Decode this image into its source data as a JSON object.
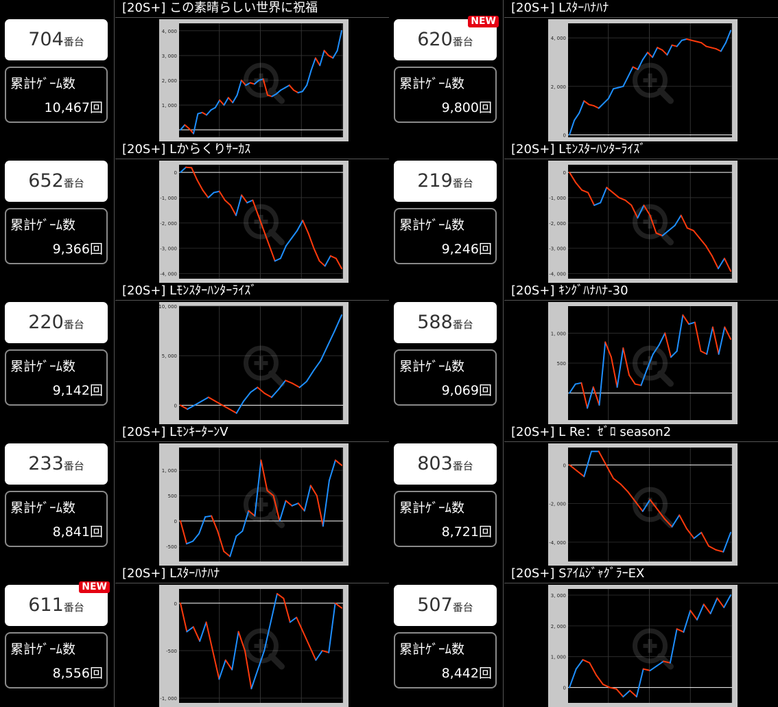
{
  "rows": [
    {
      "machine_number": "704",
      "machine_unit": "番台",
      "is_new": false,
      "title": "[20S+] この素晴らしい世界に祝福",
      "games_label": "累計ｹﾞｰﾑ数",
      "games_value": "10,467回",
      "chart_data": {
        "type": "line",
        "ylim": [
          -300,
          4300
        ],
        "yticks": [
          {
            "v": 0,
            "label": ""
          },
          {
            "v": 1000,
            "label": "1, 000"
          },
          {
            "v": 2000,
            "label": "2, 000"
          },
          {
            "v": 3000,
            "label": "3, 000"
          },
          {
            "v": 4000,
            "label": "4, 000"
          }
        ],
        "y": [
          0,
          200,
          50,
          -150,
          650,
          700,
          600,
          800,
          900,
          1200,
          1000,
          1300,
          1100,
          1400,
          2000,
          1800,
          1900,
          1850,
          2000,
          2050,
          1400,
          1350,
          1450,
          1600,
          1700,
          1800,
          1600,
          1500,
          1550,
          1800,
          2400,
          2900,
          2600,
          3200,
          3000,
          2900,
          3200,
          4000
        ]
      }
    },
    {
      "machine_number": "620",
      "machine_unit": "番台",
      "is_new": true,
      "new_label": "NEW",
      "title": "[20S+] Lｽﾀｰﾊﾅﾊﾅ",
      "games_label": "累計ｹﾞｰﾑ数",
      "games_value": "9,800回",
      "chart_data": {
        "type": "line",
        "ylim": [
          -100,
          4600
        ],
        "yticks": [
          {
            "v": 0,
            "label": "0"
          },
          {
            "v": 2000,
            "label": "2, 000"
          },
          {
            "v": 4000,
            "label": "4, 000"
          }
        ],
        "y": [
          0,
          600,
          900,
          1400,
          1250,
          1200,
          1100,
          1300,
          1500,
          1900,
          1950,
          2000,
          2400,
          2800,
          2700,
          3100,
          3400,
          3200,
          3600,
          3500,
          3300,
          3700,
          3650,
          3900,
          3950,
          3900,
          3850,
          3800,
          3650,
          3600,
          3550,
          3450,
          3800,
          4300
        ]
      }
    },
    {
      "machine_number": "652",
      "machine_unit": "番台",
      "is_new": false,
      "title": "[20S+] Lからくりｻｰｶｽ",
      "games_label": "累計ｹﾞｰﾑ数",
      "games_value": "9,366回",
      "chart_data": {
        "type": "line",
        "ylim": [
          -4200,
          300
        ],
        "yticks": [
          {
            "v": 0,
            "label": "0"
          },
          {
            "v": -1000,
            "label": "-1, 000"
          },
          {
            "v": -2000,
            "label": "-2, 000"
          },
          {
            "v": -3000,
            "label": "-3, 000"
          },
          {
            "v": -4000,
            "label": "-4, 000"
          }
        ],
        "y": [
          0,
          200,
          180,
          -300,
          -700,
          -1000,
          -800,
          -750,
          -1100,
          -1300,
          -1700,
          -900,
          -1200,
          -1100,
          -1700,
          -2300,
          -2900,
          -3500,
          -3400,
          -2900,
          -2600,
          -2300,
          -1900,
          -2400,
          -3000,
          -3500,
          -3700,
          -3300,
          -3400,
          -3800
        ]
      }
    },
    {
      "machine_number": "219",
      "machine_unit": "番台",
      "is_new": false,
      "title": "[20S+] Lﾓﾝｽﾀｰﾊﾝﾀｰﾗｲｽﾞ",
      "games_label": "累計ｹﾞｰﾑ数",
      "games_value": "9,246回",
      "chart_data": {
        "type": "line",
        "ylim": [
          -4200,
          300
        ],
        "yticks": [
          {
            "v": 0,
            "label": "0"
          },
          {
            "v": -1000,
            "label": "-1, 000"
          },
          {
            "v": -2000,
            "label": "-2, 000"
          },
          {
            "v": -3000,
            "label": "-3, 000"
          },
          {
            "v": -4000,
            "label": "-4, 000"
          }
        ],
        "y": [
          0,
          -400,
          -700,
          -800,
          -1300,
          -1200,
          -600,
          -800,
          -1000,
          -1100,
          -1300,
          -1800,
          -1300,
          -1700,
          -2400,
          -2500,
          -2300,
          -2100,
          -1700,
          -2200,
          -2300,
          -2600,
          -2900,
          -3300,
          -3800,
          -3400,
          -3900
        ]
      }
    },
    {
      "machine_number": "220",
      "machine_unit": "番台",
      "is_new": false,
      "title": "[20S+] Lﾓﾝｽﾀｰﾊﾝﾀｰﾗｲｽﾞ",
      "games_label": "累計ｹﾞｰﾑ数",
      "games_value": "9,142回",
      "chart_data": {
        "type": "line",
        "ylim": [
          -1500,
          10000
        ],
        "yticks": [
          {
            "v": 0,
            "label": "0"
          },
          {
            "v": 5000,
            "label": "5, 000"
          },
          {
            "v": 10000,
            "label": "10, 000"
          }
        ],
        "y": [
          0,
          -400,
          0,
          400,
          800,
          400,
          0,
          -400,
          -800,
          400,
          1300,
          1800,
          1200,
          800,
          1600,
          2500,
          2200,
          1800,
          2400,
          3500,
          4500,
          6000,
          7500,
          9100
        ]
      }
    },
    {
      "machine_number": "588",
      "machine_unit": "番台",
      "is_new": false,
      "title": "[20S+] ｷﾝｸﾞﾊﾅﾊﾅ-30",
      "games_label": "累計ｹﾞｰﾑ数",
      "games_value": "9,069回",
      "chart_data": {
        "type": "line",
        "ylim": [
          -450,
          1450
        ],
        "yticks": [
          {
            "v": 0,
            "label": ""
          },
          {
            "v": 500,
            "label": "500"
          },
          {
            "v": 1000,
            "label": "1, 000"
          }
        ],
        "y": [
          0,
          150,
          170,
          -250,
          100,
          -200,
          850,
          600,
          100,
          750,
          300,
          150,
          130,
          400,
          650,
          800,
          1000,
          600,
          700,
          1300,
          1150,
          1180,
          700,
          650,
          1100,
          650,
          1100,
          900
        ]
      }
    },
    {
      "machine_number": "233",
      "machine_unit": "番台",
      "is_new": false,
      "title": "[20S+] LﾓﾝｷｰﾀｰﾝⅤ",
      "games_label": "累計ｹﾞｰﾑ数",
      "games_value": "8,841回",
      "chart_data": {
        "type": "line",
        "ylim": [
          -800,
          1450
        ],
        "yticks": [
          {
            "v": 0,
            "label": "0"
          },
          {
            "v": 500,
            "label": "500"
          },
          {
            "v": 1000,
            "label": "1, 000"
          },
          {
            "v": -500,
            "label": "-500"
          }
        ],
        "y": [
          0,
          -450,
          -400,
          -250,
          80,
          100,
          -200,
          -600,
          -700,
          -300,
          -200,
          200,
          100,
          1200,
          600,
          500,
          0,
          400,
          300,
          350,
          200,
          700,
          500,
          -100,
          800,
          1200,
          1100
        ]
      }
    },
    {
      "machine_number": "803",
      "machine_unit": "番台",
      "is_new": false,
      "title": "[20S+] L Re：ｾﾞﾛ season2",
      "games_label": "累計ｹﾞｰﾑ数",
      "games_value": "8,721回",
      "chart_data": {
        "type": "line",
        "ylim": [
          -5000,
          900
        ],
        "yticks": [
          {
            "v": 0,
            "label": "0"
          },
          {
            "v": -2000,
            "label": "-2, 000"
          },
          {
            "v": -4000,
            "label": "-4, 000"
          }
        ],
        "y": [
          0,
          -300,
          -600,
          700,
          700,
          0,
          -700,
          -1000,
          -1400,
          -1900,
          -2400,
          -1800,
          -2300,
          -2800,
          -3200,
          -2600,
          -3300,
          -3800,
          -3500,
          -4200,
          -4400,
          -4500,
          -3500
        ]
      }
    },
    {
      "machine_number": "611",
      "machine_unit": "番台",
      "is_new": true,
      "new_label": "NEW",
      "title": "[20S+] Lｽﾀｰﾊﾅﾊﾅ",
      "games_label": "累計ｹﾞｰﾑ数",
      "games_value": "8,556回",
      "chart_data": {
        "type": "line",
        "ylim": [
          -1050,
          150
        ],
        "yticks": [
          {
            "v": 0,
            "label": "0"
          },
          {
            "v": -500,
            "label": "-500"
          },
          {
            "v": -1000,
            "label": "-1, 000"
          }
        ],
        "y": [
          0,
          -300,
          -250,
          -400,
          -200,
          -500,
          -800,
          -600,
          -700,
          -300,
          -500,
          -900,
          -700,
          -500,
          -200,
          100,
          50,
          -200,
          -150,
          -300,
          -450,
          -600,
          -500,
          -520,
          0,
          -50
        ]
      }
    },
    {
      "machine_number": "507",
      "machine_unit": "番台",
      "is_new": false,
      "title": "[20S+] SｱｲﾑｼﾞｬｸﾞﾗｰEX",
      "games_label": "累計ｹﾞｰﾑ数",
      "games_value": "8,442回",
      "chart_data": {
        "type": "line",
        "ylim": [
          -500,
          3200
        ],
        "yticks": [
          {
            "v": 0,
            "label": "0"
          },
          {
            "v": 1000,
            "label": "1, 000"
          },
          {
            "v": 2000,
            "label": "2, 000"
          },
          {
            "v": 3000,
            "label": "3, 000"
          }
        ],
        "y": [
          0,
          600,
          900,
          800,
          400,
          100,
          0,
          -50,
          -300,
          -100,
          -300,
          600,
          550,
          700,
          850,
          800,
          1900,
          1800,
          2500,
          2200,
          2700,
          2400,
          2900,
          2600,
          3000
        ]
      }
    }
  ],
  "colors": {
    "profit": "#1e8fff",
    "loss": "#ff3a0c",
    "chart_bg": "#000000",
    "frame": "#c8c8c8",
    "axis_text": "#bbbbbb",
    "zero_line": "#ffffff",
    "grid": "#333333"
  },
  "icons": {
    "watermark": "magnifier-plus-icon"
  }
}
